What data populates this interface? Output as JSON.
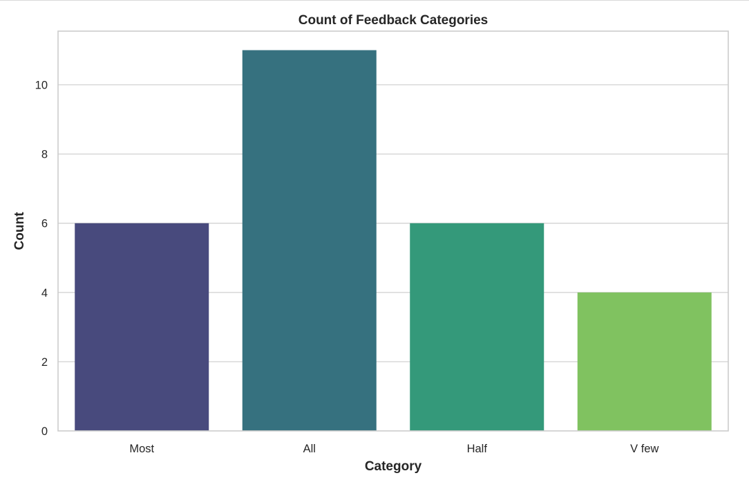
{
  "chart_data": {
    "type": "bar",
    "title": "Count of Feedback Categories",
    "xlabel": "Category",
    "ylabel": "Count",
    "categories": [
      "Most",
      "All",
      "Half",
      "V few"
    ],
    "values": [
      6,
      11,
      6,
      4
    ],
    "colors": [
      "#484a7d",
      "#36717f",
      "#34997a",
      "#80c260"
    ],
    "ylim": [
      0,
      11.55
    ],
    "yticks": [
      0,
      2,
      4,
      6,
      8,
      10
    ],
    "grid": true,
    "grid_axis": "y",
    "legend": "none"
  }
}
